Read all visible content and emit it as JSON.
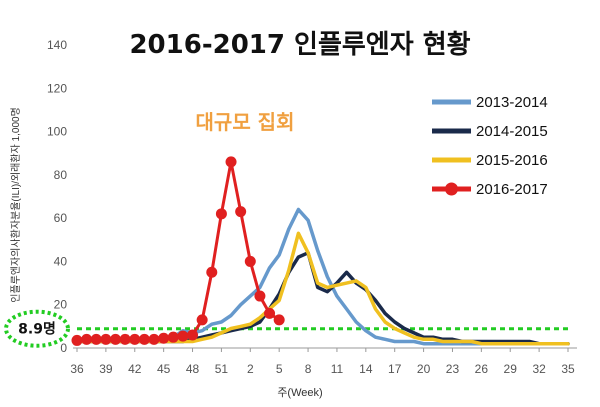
{
  "chart_data": {
    "type": "line",
    "title": "2016-2017 인플루엔자 현황",
    "xlabel": "주(Week)",
    "ylabel": "인플루엔자의사환자분율(ILI)/외래환자 1,000명",
    "ylim": [
      0,
      140
    ],
    "y_ticks": [
      "0",
      "20",
      "40",
      "60",
      "80",
      "100",
      "120",
      "140"
    ],
    "x_tick_labels": [
      "36",
      "39",
      "42",
      "45",
      "48",
      "51",
      "2",
      "5",
      "8",
      "11",
      "14",
      "17",
      "20",
      "23",
      "26",
      "29",
      "32",
      "35"
    ],
    "x_weeks": [
      "36",
      "37",
      "38",
      "39",
      "40",
      "41",
      "42",
      "43",
      "44",
      "45",
      "46",
      "47",
      "48",
      "49",
      "50",
      "51",
      "52",
      "1",
      "2",
      "3",
      "4",
      "5",
      "6",
      "7",
      "8",
      "9",
      "10",
      "11",
      "12",
      "13",
      "14",
      "15",
      "16",
      "17",
      "18",
      "19",
      "20",
      "21",
      "22",
      "23",
      "24",
      "25",
      "26",
      "27",
      "28",
      "29",
      "30",
      "31",
      "32",
      "33",
      "34",
      "35"
    ],
    "annotation": "대규모 집회",
    "threshold": {
      "value": 8.9,
      "label": "8.9명",
      "color": "#22cc22"
    },
    "legend_position": "right",
    "series": [
      {
        "name": "2013-2014",
        "color": "#6699cc",
        "markers": false,
        "values": [
          4,
          4,
          4,
          4,
          4,
          4,
          4,
          4,
          4,
          4,
          5,
          8,
          7,
          8,
          11,
          12,
          15,
          20,
          24,
          28,
          37,
          43,
          55,
          64,
          59,
          45,
          33,
          24,
          18,
          12,
          8,
          5,
          4,
          3,
          3,
          3,
          2,
          2,
          2,
          2,
          2,
          2,
          2,
          2,
          2,
          2,
          2,
          2,
          2,
          2,
          2,
          2
        ]
      },
      {
        "name": "2014-2015",
        "color": "#1a2a4a",
        "markers": false,
        "values": [
          3,
          3,
          3,
          3,
          3,
          3,
          3,
          3,
          3,
          3,
          3,
          3,
          4,
          5,
          6,
          7,
          8,
          9,
          10,
          12,
          18,
          25,
          35,
          42,
          44,
          28,
          26,
          30,
          35,
          30,
          27,
          22,
          16,
          12,
          9,
          7,
          5,
          5,
          4,
          4,
          3,
          3,
          3,
          3,
          3,
          3,
          3,
          3,
          2,
          2,
          2,
          2
        ]
      },
      {
        "name": "2015-2016",
        "color": "#f0c020",
        "markers": false,
        "values": [
          3,
          3,
          3,
          3,
          3,
          3,
          3,
          3,
          3,
          3,
          3,
          3,
          3,
          4,
          5,
          7,
          9,
          10,
          11,
          14,
          18,
          22,
          36,
          53,
          44,
          30,
          28,
          29,
          30,
          31,
          28,
          18,
          12,
          9,
          7,
          5,
          4,
          4,
          3,
          3,
          3,
          3,
          2,
          2,
          2,
          2,
          2,
          2,
          2,
          2,
          2,
          2
        ]
      },
      {
        "name": "2016-2017",
        "color": "#e02020",
        "markers": true,
        "values": [
          3.5,
          4,
          4,
          4,
          4,
          4,
          4,
          4,
          4,
          4.5,
          5,
          5.5,
          6,
          13,
          35,
          62,
          86,
          63,
          40,
          24,
          16,
          13
        ]
      }
    ]
  }
}
